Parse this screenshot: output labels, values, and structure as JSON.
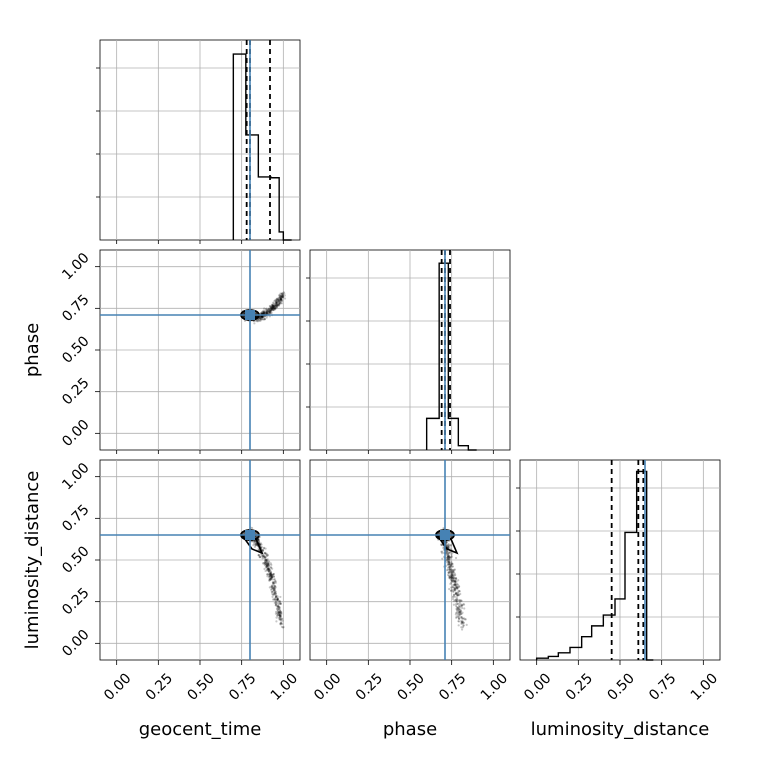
{
  "chart_data": {
    "type": "corner",
    "parameters": [
      "geocent_time",
      "phase",
      "luminosity_distance"
    ],
    "labels": {
      "geocent_time": "geocent_time",
      "phase": "phase",
      "luminosity_distance": "luminosity_distance"
    },
    "range": [
      -0.1,
      1.1
    ],
    "ticks": [
      0.0,
      0.25,
      0.5,
      0.75,
      1.0
    ],
    "tick_labels": [
      "0.00",
      "0.25",
      "0.50",
      "0.75",
      "1.00"
    ],
    "grid": true,
    "truths": {
      "geocent_time": 0.8,
      "phase": 0.71,
      "luminosity_distance": 0.65
    },
    "truth_color": "#4682b4",
    "histogram_color": "#000000",
    "histograms": {
      "geocent_time": {
        "bin_edges": [
          0.7,
          0.775,
          0.85,
          0.925,
          0.975,
          1.0,
          1.05
        ],
        "counts": [
          230,
          130,
          78,
          77,
          10,
          0
        ],
        "ymax": 240,
        "quantiles": [
          0.78,
          0.8,
          0.92
        ]
      },
      "phase": {
        "bin_edges": [
          0.6,
          0.675,
          0.73,
          0.79,
          0.85,
          0.9
        ],
        "counts": [
          22,
          130,
          22,
          3,
          0
        ],
        "ymax": 135,
        "quantiles": [
          0.69,
          0.71,
          0.74
        ]
      },
      "luminosity_distance": {
        "bin_edges": [
          0.0,
          0.07,
          0.13,
          0.2,
          0.27,
          0.33,
          0.4,
          0.47,
          0.53,
          0.6,
          0.66,
          0.7
        ],
        "counts": [
          1,
          2,
          4,
          7,
          13,
          19,
          25,
          34,
          71,
          105,
          0
        ],
        "ymax": 108,
        "quantiles": [
          0.45,
          0.61,
          0.64
        ]
      }
    },
    "scatter_2d": [
      {
        "x": "geocent_time",
        "y": "phase",
        "center": [
          0.8,
          0.71
        ],
        "spread_note": "posterior points forming an upward-curving band from geocent_time 0.75 to 1.0"
      },
      {
        "x": "geocent_time",
        "y": "luminosity_distance",
        "center": [
          0.8,
          0.65
        ],
        "spread_note": "posterior points curving down from luminosity_distance 0.65 to 0.1 as geocent_time rises to 1.0"
      },
      {
        "x": "phase",
        "y": "luminosity_distance",
        "center": [
          0.71,
          0.65
        ],
        "spread_note": "posterior points descending from luminosity_distance 0.65 to 0.1 as phase rises from 0.7 to 0.83"
      }
    ]
  }
}
